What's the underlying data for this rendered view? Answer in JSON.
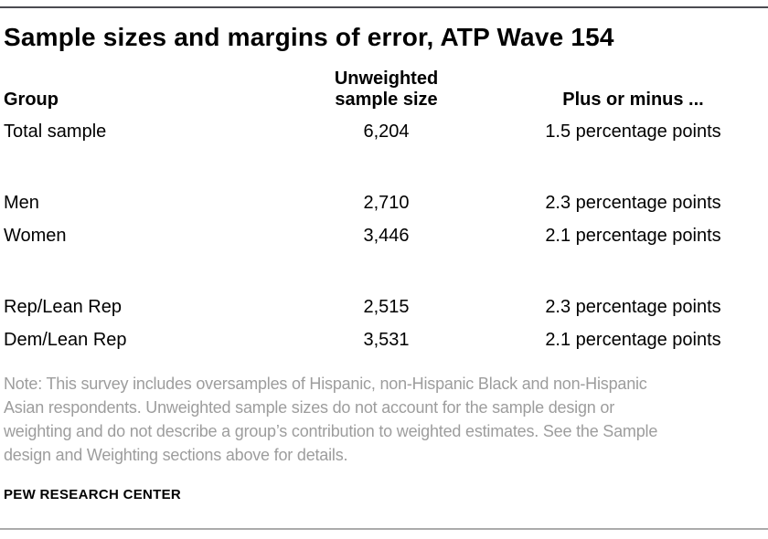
{
  "colors": {
    "background": "#ffffff",
    "rule_top": "#4b4c51",
    "rule_bottom": "#ababab",
    "text": "#000000",
    "note_text": "#9d9d9d"
  },
  "chart_data": {
    "type": "table",
    "title": "Sample sizes and margins of error, ATP Wave 154",
    "columns": [
      "Group",
      "Unweighted sample size",
      "Plus or minus ..."
    ],
    "rows": [
      [
        "Total sample",
        "6,204",
        "1.5 percentage points"
      ],
      [
        "Men",
        "2,710",
        "2.3 percentage points"
      ],
      [
        "Women",
        "3,446",
        "2.1 percentage points"
      ],
      [
        "Rep/Lean Rep",
        "2,515",
        "2.3 percentage points"
      ],
      [
        "Dem/Lean Rep",
        "3,531",
        "2.1 percentage points"
      ]
    ],
    "row_groups": [
      [
        0
      ],
      [
        1,
        2
      ],
      [
        3,
        4
      ]
    ],
    "note_text": "Note: This survey includes oversamples of Hispanic, non-Hispanic Black and non-Hispanic Asian respondents. Unweighted sample sizes do not account for the sample design or weighting and do not describe a group’s contribution to weighted estimates. See the Sample design and Weighting sections above for details.",
    "note_lines": [
      "Note: This survey includes oversamples of Hispanic, non-Hispanic Black and non-Hispanic",
      "Asian respondents. Unweighted sample sizes do not account for the sample design or",
      "weighting and do not describe a group’s contribution to weighted estimates. See the Sample",
      "design and Weighting sections above for details."
    ],
    "source": "PEW RESEARCH CENTER"
  }
}
